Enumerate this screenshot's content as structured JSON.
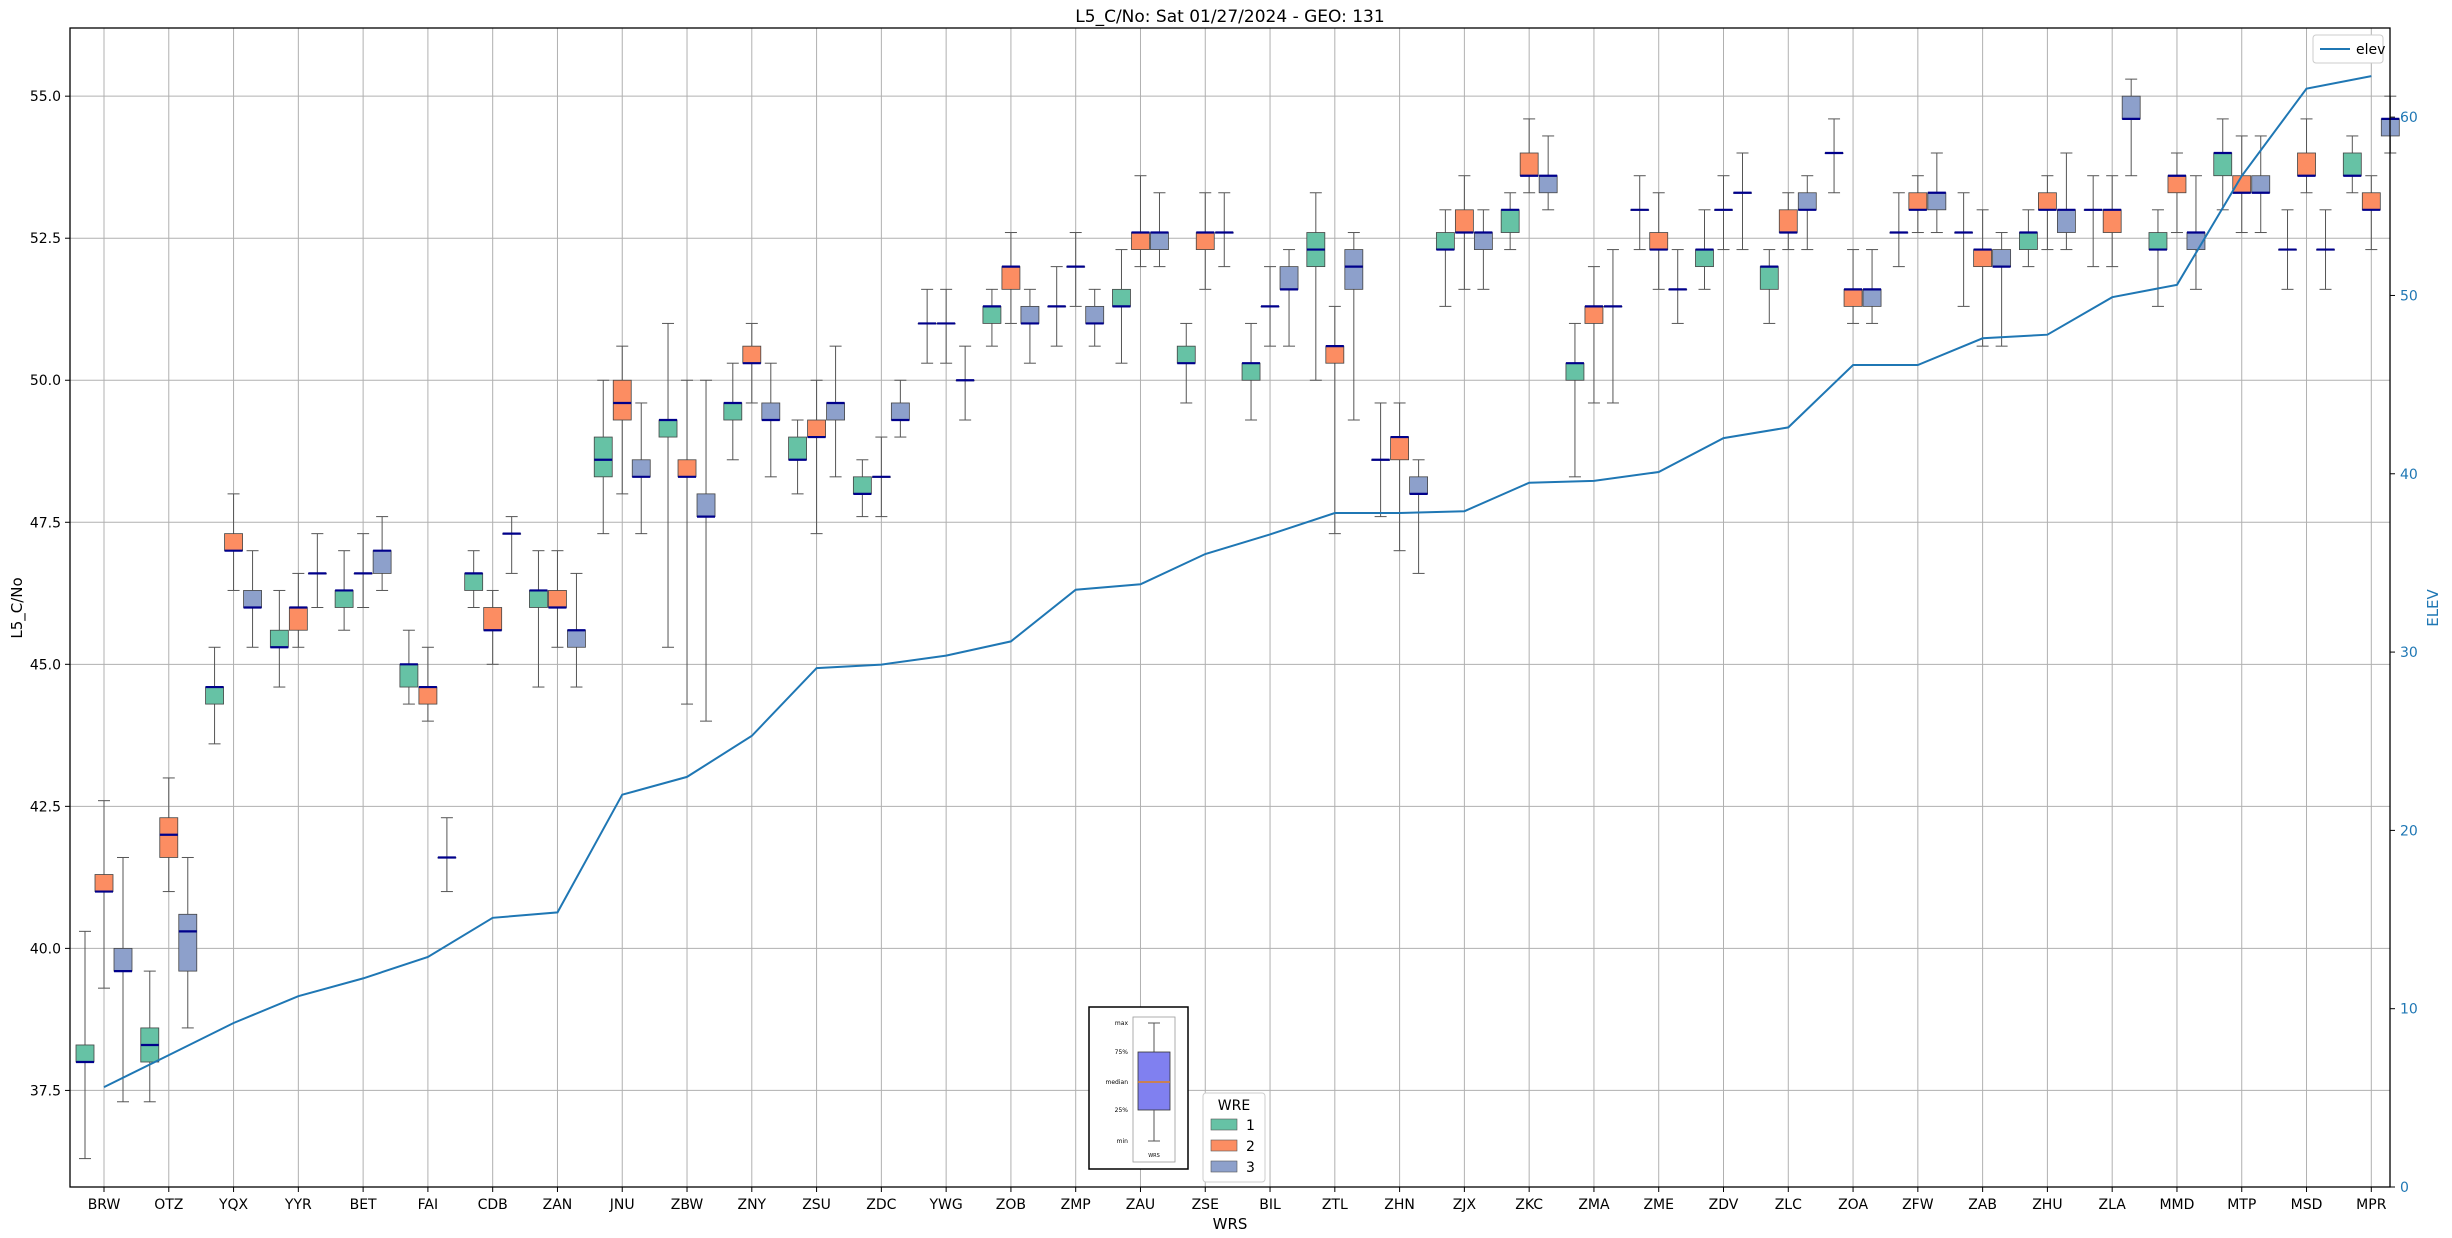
{
  "chart_data": {
    "type": "box",
    "title": "L5_C/No: Sat 01/27/2024 - GEO: 131",
    "xlabel": "WRS",
    "ylabel": "L5_C/No",
    "y2label": "ELEV",
    "ylim": [
      35.8,
      56.2
    ],
    "y2lim": [
      0,
      65
    ],
    "yticks": [
      37.5,
      40.0,
      42.5,
      45.0,
      47.5,
      50.0,
      52.5,
      55.0
    ],
    "y2ticks": [
      0,
      10,
      20,
      30,
      40,
      50,
      60
    ],
    "grid": true,
    "categories": [
      "BRW",
      "OTZ",
      "YQX",
      "YYR",
      "BET",
      "FAI",
      "CDB",
      "ZAN",
      "JNU",
      "ZBW",
      "ZNY",
      "ZSU",
      "ZDC",
      "YWG",
      "ZOB",
      "ZMP",
      "ZAU",
      "ZSE",
      "BIL",
      "ZTL",
      "ZHN",
      "ZJX",
      "ZKC",
      "ZMA",
      "ZME",
      "ZDV",
      "ZLC",
      "ZOA",
      "ZFW",
      "ZAB",
      "ZHU",
      "ZLA",
      "MMD",
      "MTP",
      "MSD",
      "MPR"
    ],
    "elev_series": {
      "name": "elev",
      "values": [
        5.6,
        7.4,
        9.2,
        10.7,
        11.7,
        12.9,
        15.1,
        15.4,
        22.0,
        23.0,
        25.3,
        29.1,
        29.3,
        29.8,
        30.6,
        33.5,
        33.8,
        35.5,
        36.6,
        37.8,
        37.8,
        37.9,
        39.5,
        39.6,
        40.1,
        42.0,
        42.6,
        46.1,
        46.1,
        47.6,
        47.8,
        49.9,
        50.6,
        56.7,
        61.6,
        62.3
      ]
    },
    "legend_elev": {
      "label": "elev",
      "placement": "upper right"
    },
    "legend_wre": {
      "title": "WRE",
      "labels": [
        "1",
        "2",
        "3"
      ],
      "placement": "lower center"
    },
    "legend_key": {
      "labels": [
        "max",
        "75%",
        "median",
        "25%",
        "min"
      ],
      "footer": "WRS"
    },
    "colors": {
      "wre1": "#66c2a5",
      "wre2": "#fc8d62",
      "wre3": "#8da0cb",
      "median": "#00008b",
      "elev": "#1f77b4",
      "whisker": "#555555",
      "grid": "#b0b0b0",
      "key_box": "#8080f0"
    },
    "series": [
      {
        "name": "1",
        "boxes": [
          [
            36.3,
            38.0,
            38.0,
            38.3,
            40.3
          ],
          [
            37.3,
            38.0,
            38.3,
            38.6,
            39.6
          ],
          [
            43.6,
            44.3,
            44.6,
            44.6,
            45.3
          ],
          [
            44.6,
            45.3,
            45.3,
            45.6,
            46.3
          ],
          [
            45.6,
            46.0,
            46.3,
            46.3,
            47.0
          ],
          [
            44.3,
            44.6,
            45.0,
            45.0,
            45.6
          ],
          [
            46.0,
            46.3,
            46.6,
            46.6,
            47.0
          ],
          [
            44.6,
            46.0,
            46.3,
            46.3,
            47.0
          ],
          [
            47.3,
            48.3,
            48.6,
            49.0,
            50.0
          ],
          [
            45.3,
            49.0,
            49.3,
            49.3,
            51.0
          ],
          [
            48.6,
            49.3,
            49.6,
            49.6,
            50.3
          ],
          [
            48.0,
            48.6,
            48.6,
            49.0,
            49.3
          ],
          [
            47.6,
            48.0,
            48.0,
            48.3,
            48.6
          ],
          [
            50.3,
            51.0,
            51.0,
            51.0,
            51.6
          ],
          [
            50.6,
            51.0,
            51.3,
            51.3,
            51.6
          ],
          [
            50.6,
            51.3,
            51.3,
            51.3,
            52.0
          ],
          [
            50.3,
            51.3,
            51.3,
            51.6,
            52.3
          ],
          [
            49.6,
            50.3,
            50.3,
            50.6,
            51.0
          ],
          [
            49.3,
            50.0,
            50.3,
            50.3,
            51.0
          ],
          [
            50.0,
            52.0,
            52.3,
            52.6,
            53.3
          ],
          [
            47.6,
            48.6,
            48.6,
            48.6,
            49.6
          ],
          [
            51.3,
            52.3,
            52.3,
            52.6,
            53.0
          ],
          [
            52.3,
            52.6,
            53.0,
            53.0,
            53.3
          ],
          [
            48.3,
            50.0,
            50.3,
            50.3,
            51.0
          ],
          [
            52.3,
            53.0,
            53.0,
            53.0,
            53.6
          ],
          [
            51.6,
            52.0,
            52.3,
            52.3,
            53.0
          ],
          [
            51.0,
            51.6,
            52.0,
            52.0,
            52.3
          ],
          [
            53.3,
            54.0,
            54.0,
            54.0,
            54.6
          ],
          [
            52.0,
            52.6,
            52.6,
            52.6,
            53.3
          ],
          [
            51.3,
            52.6,
            52.6,
            52.6,
            53.3
          ],
          [
            52.0,
            52.3,
            52.6,
            52.6,
            53.0
          ],
          [
            52.0,
            53.0,
            53.0,
            53.0,
            53.6
          ],
          [
            51.3,
            52.3,
            52.3,
            52.6,
            53.0
          ],
          [
            53.0,
            53.6,
            54.0,
            54.0,
            54.6
          ],
          [
            51.6,
            52.3,
            52.3,
            52.3,
            53.0
          ],
          [
            53.3,
            53.6,
            53.6,
            54.0,
            54.3
          ]
        ]
      },
      {
        "name": "2",
        "boxes": [
          [
            39.3,
            41.0,
            41.0,
            41.3,
            42.6
          ],
          [
            41.0,
            41.6,
            42.0,
            42.3,
            43.0
          ],
          [
            46.3,
            47.0,
            47.0,
            47.3,
            48.0
          ],
          [
            45.3,
            45.6,
            46.0,
            46.0,
            46.6
          ],
          [
            46.0,
            46.6,
            46.6,
            46.6,
            47.3
          ],
          [
            44.0,
            44.3,
            44.6,
            44.6,
            45.3
          ],
          [
            45.0,
            45.6,
            45.6,
            46.0,
            46.3
          ],
          [
            45.3,
            46.0,
            46.0,
            46.3,
            47.0
          ],
          [
            48.0,
            49.3,
            49.6,
            50.0,
            50.6
          ],
          [
            44.3,
            48.3,
            48.3,
            48.6,
            50.0
          ],
          [
            49.6,
            50.3,
            50.3,
            50.6,
            51.0
          ],
          [
            47.3,
            49.0,
            49.0,
            49.3,
            50.0
          ],
          [
            47.6,
            48.3,
            48.3,
            48.3,
            49.0
          ],
          [
            50.3,
            51.0,
            51.0,
            51.0,
            51.6
          ],
          [
            51.0,
            51.6,
            52.0,
            52.0,
            52.6
          ],
          [
            51.3,
            52.0,
            52.0,
            52.0,
            52.6
          ],
          [
            52.0,
            52.3,
            52.6,
            52.6,
            53.6
          ],
          [
            51.6,
            52.3,
            52.6,
            52.6,
            53.3
          ],
          [
            50.6,
            51.3,
            51.3,
            51.3,
            52.0
          ],
          [
            47.3,
            50.3,
            50.6,
            50.6,
            51.3
          ],
          [
            47.0,
            48.6,
            49.0,
            49.0,
            49.6
          ],
          [
            51.6,
            52.6,
            52.6,
            53.0,
            53.6
          ],
          [
            53.3,
            53.6,
            53.6,
            54.0,
            54.6
          ],
          [
            49.6,
            51.0,
            51.3,
            51.3,
            52.0
          ],
          [
            51.6,
            52.3,
            52.3,
            52.6,
            53.3
          ],
          [
            52.3,
            53.0,
            53.0,
            53.0,
            53.6
          ],
          [
            52.3,
            52.6,
            52.6,
            53.0,
            53.3
          ],
          [
            51.0,
            51.3,
            51.6,
            51.6,
            52.3
          ],
          [
            52.6,
            53.0,
            53.0,
            53.3,
            53.6
          ],
          [
            50.6,
            52.0,
            52.3,
            52.3,
            53.0
          ],
          [
            52.3,
            53.0,
            53.0,
            53.3,
            53.6
          ],
          [
            52.0,
            52.6,
            53.0,
            53.0,
            53.6
          ],
          [
            52.6,
            53.3,
            53.6,
            53.6,
            54.0
          ],
          [
            52.6,
            53.3,
            53.3,
            53.6,
            54.3
          ],
          [
            53.3,
            53.6,
            53.6,
            54.0,
            54.6
          ],
          [
            52.3,
            53.0,
            53.0,
            53.3,
            53.6
          ]
        ]
      },
      {
        "name": "3",
        "boxes": [
          [
            37.3,
            39.6,
            39.6,
            40.0,
            41.6
          ],
          [
            38.6,
            39.6,
            40.3,
            40.6,
            41.6
          ],
          [
            45.3,
            46.0,
            46.0,
            46.3,
            47.0
          ],
          [
            46.0,
            46.6,
            46.6,
            46.6,
            47.3
          ],
          [
            46.3,
            46.6,
            47.0,
            47.0,
            47.6
          ],
          [
            41.0,
            41.6,
            41.6,
            41.6,
            42.3
          ],
          [
            46.6,
            47.3,
            47.3,
            47.3,
            47.6
          ],
          [
            44.6,
            45.3,
            45.6,
            45.6,
            46.6
          ],
          [
            47.3,
            48.3,
            48.3,
            48.6,
            49.6
          ],
          [
            44.0,
            47.6,
            47.6,
            48.0,
            50.0
          ],
          [
            48.3,
            49.3,
            49.3,
            49.6,
            50.3
          ],
          [
            48.3,
            49.3,
            49.6,
            49.6,
            50.6
          ],
          [
            49.0,
            49.3,
            49.3,
            49.6,
            50.0
          ],
          [
            49.3,
            50.0,
            50.0,
            50.0,
            50.6
          ],
          [
            50.3,
            51.0,
            51.0,
            51.3,
            51.6
          ],
          [
            50.6,
            51.0,
            51.0,
            51.3,
            51.6
          ],
          [
            52.0,
            52.3,
            52.6,
            52.6,
            53.3
          ],
          [
            52.0,
            52.6,
            52.6,
            52.6,
            53.3
          ],
          [
            50.6,
            51.6,
            51.6,
            52.0,
            52.3
          ],
          [
            49.3,
            51.6,
            52.0,
            52.3,
            52.6
          ],
          [
            46.6,
            48.0,
            48.0,
            48.3,
            48.6
          ],
          [
            51.6,
            52.3,
            52.6,
            52.6,
            53.0
          ],
          [
            53.0,
            53.3,
            53.6,
            53.6,
            54.3
          ],
          [
            49.6,
            51.3,
            51.3,
            51.3,
            52.3
          ],
          [
            51.0,
            51.6,
            51.6,
            51.6,
            52.3
          ],
          [
            52.3,
            53.3,
            53.3,
            53.3,
            54.0
          ],
          [
            52.3,
            53.0,
            53.0,
            53.3,
            53.6
          ],
          [
            51.0,
            51.3,
            51.6,
            51.6,
            52.3
          ],
          [
            52.6,
            53.0,
            53.3,
            53.3,
            54.0
          ],
          [
            50.6,
            52.0,
            52.0,
            52.3,
            52.6
          ],
          [
            52.3,
            52.6,
            53.0,
            53.0,
            54.0
          ],
          [
            53.6,
            54.6,
            54.6,
            55.0,
            55.3
          ],
          [
            51.6,
            52.3,
            52.6,
            52.6,
            53.6
          ],
          [
            52.6,
            53.3,
            53.3,
            53.6,
            54.3
          ],
          [
            51.6,
            52.3,
            52.3,
            52.3,
            53.0
          ],
          [
            54.0,
            54.3,
            54.6,
            54.6,
            55.0
          ]
        ]
      }
    ]
  }
}
